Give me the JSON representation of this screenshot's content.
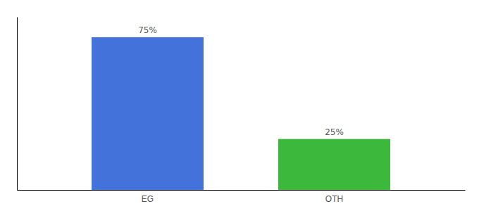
{
  "chart_data": {
    "type": "bar",
    "categories": [
      "EG",
      "OTH"
    ],
    "values": [
      75,
      25
    ],
    "value_labels": [
      "75%",
      "25%"
    ],
    "colors": [
      "#4472db",
      "#3cb83c"
    ],
    "ylim": [
      0,
      85
    ],
    "data_labels": true,
    "tick_labels": "x"
  }
}
